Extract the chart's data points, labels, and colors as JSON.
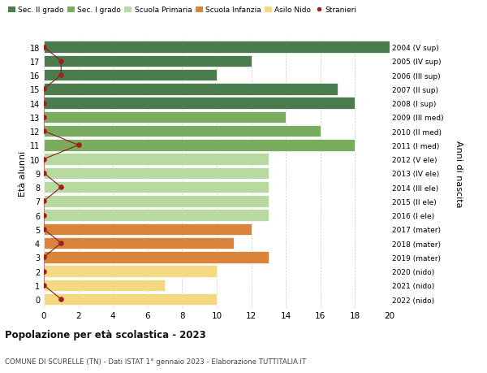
{
  "ages": [
    18,
    17,
    16,
    15,
    14,
    13,
    12,
    11,
    10,
    9,
    8,
    7,
    6,
    5,
    4,
    3,
    2,
    1,
    0
  ],
  "right_labels": [
    "2004 (V sup)",
    "2005 (IV sup)",
    "2006 (III sup)",
    "2007 (II sup)",
    "2008 (I sup)",
    "2009 (III med)",
    "2010 (II med)",
    "2011 (I med)",
    "2012 (V ele)",
    "2013 (IV ele)",
    "2014 (III ele)",
    "2015 (II ele)",
    "2016 (I ele)",
    "2017 (mater)",
    "2018 (mater)",
    "2019 (mater)",
    "2020 (nido)",
    "2021 (nido)",
    "2022 (nido)"
  ],
  "bar_values": [
    20,
    12,
    10,
    17,
    18,
    14,
    16,
    18,
    13,
    13,
    13,
    13,
    13,
    12,
    11,
    13,
    10,
    7,
    10
  ],
  "bar_colors": [
    "#4a7c4e",
    "#4a7c4e",
    "#4a7c4e",
    "#4a7c4e",
    "#4a7c4e",
    "#7aab5e",
    "#7aab5e",
    "#7aab5e",
    "#b8d9a0",
    "#b8d9a0",
    "#b8d9a0",
    "#b8d9a0",
    "#b8d9a0",
    "#d9843a",
    "#d9843a",
    "#d9843a",
    "#f5d982",
    "#f5d982",
    "#f5d982"
  ],
  "stranieri_x": [
    0,
    1,
    1,
    0,
    0,
    0,
    0,
    2,
    0,
    0,
    1,
    0,
    0,
    0,
    1,
    0,
    0,
    0,
    1
  ],
  "legend_labels": [
    "Sec. II grado",
    "Sec. I grado",
    "Scuola Primaria",
    "Scuola Infanzia",
    "Asilo Nido",
    "Stranieri"
  ],
  "legend_colors": [
    "#4a7c4e",
    "#7aab5e",
    "#b8d9a0",
    "#d9843a",
    "#f5d982",
    "#a02020"
  ],
  "title_bold": "Popolazione per età scolastica - 2023",
  "subtitle": "COMUNE DI SCURELLE (TN) - Dati ISTAT 1° gennaio 2023 - Elaborazione TUTTITALIA.IT",
  "ylabel_left": "Età alunni",
  "ylabel_right": "Anni di nascita",
  "xlim": [
    0,
    20
  ],
  "xticks": [
    0,
    2,
    4,
    6,
    8,
    10,
    12,
    14,
    16,
    18,
    20
  ],
  "bg_color": "#ffffff",
  "grid_color": "#cccccc"
}
